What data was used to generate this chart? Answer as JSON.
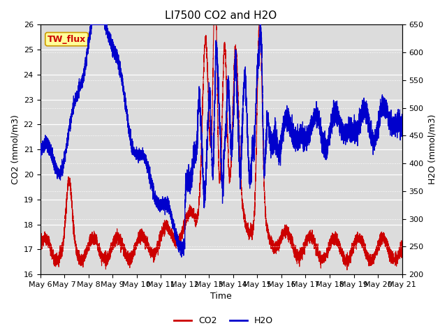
{
  "title": "LI7500 CO2 and H2O",
  "xlabel": "Time",
  "ylabel_left": "CO2 (mmol/m3)",
  "ylabel_right": "H2O (mmol/m3)",
  "ylim_left": [
    16.0,
    26.0
  ],
  "ylim_right": [
    200,
    650
  ],
  "xtick_labels": [
    "May 6",
    "May 7",
    "May 8",
    "May 9",
    "May 10",
    "May 11",
    "May 12",
    "May 13",
    "May 14",
    "May 15",
    "May 16",
    "May 17",
    "May 18",
    "May 19",
    "May 20",
    "May 21"
  ],
  "co2_color": "#cc0000",
  "h2o_color": "#0000cc",
  "background_color": "#dcdcdc",
  "annotation_text": "TW_flux",
  "annotation_facecolor": "#ffff99",
  "annotation_edgecolor": "#cc9900",
  "annotation_textcolor": "#cc0000",
  "legend_co2": "CO2",
  "legend_h2o": "H2O",
  "title_fontsize": 11,
  "axis_fontsize": 9,
  "tick_fontsize": 8,
  "n_points": 7200,
  "days": 15
}
